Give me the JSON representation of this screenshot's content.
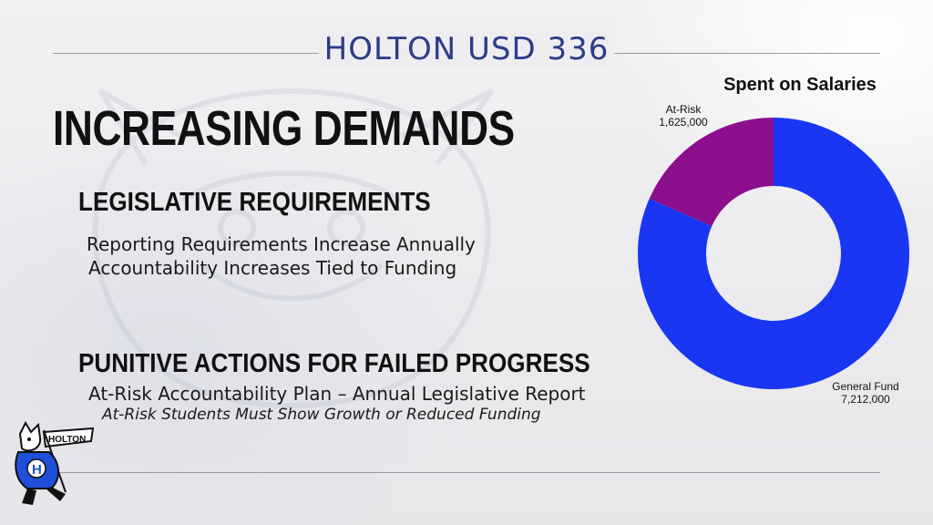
{
  "header": {
    "district": "HOLTON USD 336"
  },
  "headline": "INCREASING DEMANDS",
  "sections": [
    {
      "title": "LEGISLATIVE REQUIREMENTS",
      "lines": [
        "Reporting Requirements Increase Annually",
        "Accountability Increases Tied to Funding"
      ]
    },
    {
      "title": "PUNITIVE ACTIONS FOR FAILED PROGRESS",
      "lines": [
        "At-Risk Accountability Plan – Annual Legislative Report",
        "At-Risk Students Must Show Growth or Reduced Funding"
      ]
    }
  ],
  "logo": {
    "text": "HOLTON",
    "letter": "H"
  },
  "chart_data": {
    "type": "pie",
    "style": "donut",
    "title": "Spent on Salaries",
    "slices": [
      {
        "label": "General Fund",
        "value": 7212000,
        "value_label": "7,212,000",
        "color": "#1a36f2"
      },
      {
        "label": "At-Risk",
        "value": 1625000,
        "value_label": "1,625,000",
        "color": "#8c0f8e"
      }
    ]
  }
}
